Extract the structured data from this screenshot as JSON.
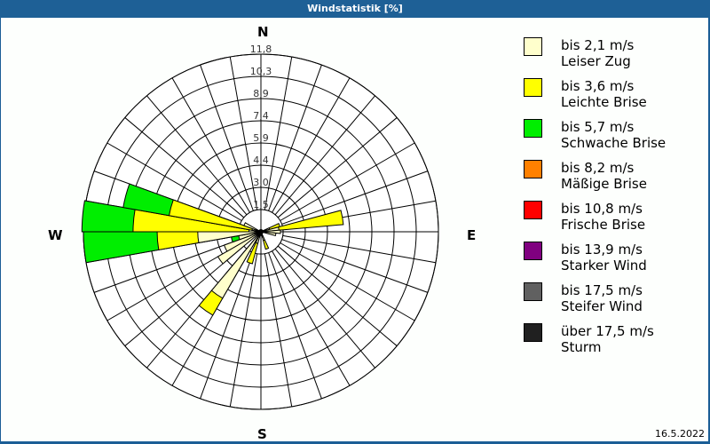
{
  "title": "Windstatistik [%]",
  "date": "16.5.2022",
  "compass": {
    "n": "N",
    "e": "E",
    "s": "S",
    "w": "W"
  },
  "legend": [
    {
      "range": "bis 2,1 m/s",
      "name": "Leiser Zug",
      "color": "#ffffcc"
    },
    {
      "range": "bis 3,6 m/s",
      "name": "Leichte Brise",
      "color": "#ffff00"
    },
    {
      "range": "bis 5,7 m/s",
      "name": "Schwache Brise",
      "color": "#00ee00"
    },
    {
      "range": "bis 8,2 m/s",
      "name": "Mäßige Brise",
      "color": "#ff8000"
    },
    {
      "range": "bis 10,8 m/s",
      "name": "Frische Brise",
      "color": "#ff0000"
    },
    {
      "range": "bis 13,9 m/s",
      "name": "Starker Wind",
      "color": "#800080"
    },
    {
      "range": "bis 17,5 m/s",
      "name": "Steifer Wind",
      "color": "#606060"
    },
    {
      "range": "über 17,5 m/s",
      "name": "Sturm",
      "color": "#202020"
    }
  ],
  "chart_data": {
    "type": "polar-bar",
    "title": "Windstatistik [%]",
    "ring_labels": [
      "1,5",
      "3,0",
      "4,4",
      "5,9",
      "7,4",
      "8,9",
      "10,3",
      "11,8"
    ],
    "rmax": 11.8,
    "sector_width_deg": 10,
    "series_names": [
      "Leiser Zug",
      "Leichte Brise",
      "Schwache Brise"
    ],
    "sectors": [
      {
        "dir": 70,
        "cum": [
          0.6,
          1.3,
          1.3
        ]
      },
      {
        "dir": 80,
        "cum": [
          1.2,
          5.5,
          5.5
        ]
      },
      {
        "dir": 90,
        "cum": [
          1.3,
          1.3,
          1.3
        ]
      },
      {
        "dir": 100,
        "cum": [
          1.0,
          1.0,
          1.0
        ]
      },
      {
        "dir": 160,
        "cum": [
          0.6,
          1.2,
          1.2
        ]
      },
      {
        "dir": 200,
        "cum": [
          0.8,
          2.2,
          2.2
        ]
      },
      {
        "dir": 215,
        "cum": [
          5.1,
          6.4,
          6.4
        ]
      },
      {
        "dir": 235,
        "cum": [
          3.3,
          3.3,
          3.3
        ]
      },
      {
        "dir": 245,
        "cum": [
          2.6,
          2.6,
          2.6
        ]
      },
      {
        "dir": 255,
        "cum": [
          1.5,
          1.5,
          2.0
        ]
      },
      {
        "dir": 265,
        "cum": [
          4.2,
          6.9,
          11.8
        ]
      },
      {
        "dir": 275,
        "cum": [
          0.8,
          8.5,
          11.9
        ]
      },
      {
        "dir": 285,
        "cum": [
          0.6,
          6.2,
          9.3
        ]
      },
      {
        "dir": 295,
        "cum": [
          1.2,
          1.2,
          1.2
        ]
      }
    ]
  }
}
